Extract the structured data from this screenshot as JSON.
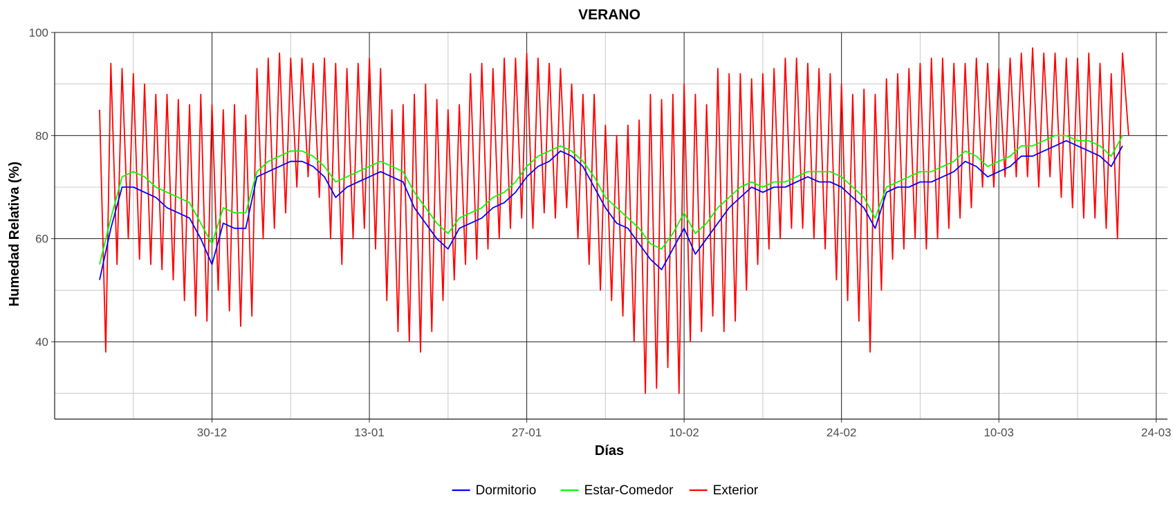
{
  "chart_data": {
    "type": "line",
    "title": "VERANO",
    "xlabel": "Días",
    "ylabel": "Humedad Relativa (%)",
    "x_ticks": [
      "30-12",
      "13-01",
      "27-01",
      "10-02",
      "24-02",
      "10-03",
      "24-03"
    ],
    "xlim": [
      "2020-12-16",
      "2021-03-25"
    ],
    "ylim": [
      25,
      100
    ],
    "y_ticks": [
      40,
      60,
      80,
      100
    ],
    "grid": true,
    "legend_position": "bottom",
    "colors": {
      "Dormitorio": "#0000ff",
      "Estar-Comedor": "#00ff00",
      "Exterior": "#ff0000"
    },
    "series": [
      {
        "name": "Dormitorio",
        "x": [
          "2020-12-20",
          "2020-12-21",
          "2020-12-22",
          "2020-12-23",
          "2020-12-24",
          "2020-12-25",
          "2020-12-26",
          "2020-12-27",
          "2020-12-28",
          "2020-12-29",
          "2020-12-30",
          "2020-12-31",
          "2021-01-01",
          "2021-01-02",
          "2021-01-03",
          "2021-01-04",
          "2021-01-05",
          "2021-01-06",
          "2021-01-07",
          "2021-01-08",
          "2021-01-09",
          "2021-01-10",
          "2021-01-11",
          "2021-01-12",
          "2021-01-13",
          "2021-01-14",
          "2021-01-15",
          "2021-01-16",
          "2021-01-17",
          "2021-01-18",
          "2021-01-19",
          "2021-01-20",
          "2021-01-21",
          "2021-01-22",
          "2021-01-23",
          "2021-01-24",
          "2021-01-25",
          "2021-01-26",
          "2021-01-27",
          "2021-01-28",
          "2021-01-29",
          "2021-01-30",
          "2021-01-31",
          "2021-02-01",
          "2021-02-02",
          "2021-02-03",
          "2021-02-04",
          "2021-02-05",
          "2021-02-06",
          "2021-02-07",
          "2021-02-08",
          "2021-02-09",
          "2021-02-10",
          "2021-02-11",
          "2021-02-12",
          "2021-02-13",
          "2021-02-14",
          "2021-02-15",
          "2021-02-16",
          "2021-02-17",
          "2021-02-18",
          "2021-02-19",
          "2021-02-20",
          "2021-02-21",
          "2021-02-22",
          "2021-02-23",
          "2021-02-24",
          "2021-02-25",
          "2021-02-26",
          "2021-02-27",
          "2021-02-28",
          "2021-03-01",
          "2021-03-02",
          "2021-03-03",
          "2021-03-04",
          "2021-03-05",
          "2021-03-06",
          "2021-03-07",
          "2021-03-08",
          "2021-03-09",
          "2021-03-10",
          "2021-03-11",
          "2021-03-12",
          "2021-03-13",
          "2021-03-14",
          "2021-03-15",
          "2021-03-16",
          "2021-03-17",
          "2021-03-18",
          "2021-03-19",
          "2021-03-20",
          "2021-03-21"
        ],
        "y": [
          52,
          62,
          70,
          70,
          69,
          68,
          66,
          65,
          64,
          60,
          55,
          63,
          62,
          62,
          72,
          73,
          74,
          75,
          75,
          74,
          72,
          68,
          70,
          71,
          72,
          73,
          72,
          71,
          66,
          63,
          60,
          58,
          62,
          63,
          64,
          66,
          67,
          69,
          72,
          74,
          75,
          77,
          76,
          74,
          70,
          66,
          63,
          62,
          59,
          56,
          54,
          58,
          62,
          57,
          60,
          63,
          66,
          68,
          70,
          69,
          70,
          70,
          71,
          72,
          71,
          71,
          70,
          68,
          66,
          62,
          69,
          70,
          70,
          71,
          71,
          72,
          73,
          75,
          74,
          72,
          73,
          74,
          76,
          76,
          77,
          78,
          79,
          78,
          77,
          76,
          74,
          78
        ]
      },
      {
        "name": "Estar-Comedor",
        "x": [
          "2020-12-20",
          "2020-12-21",
          "2020-12-22",
          "2020-12-23",
          "2020-12-24",
          "2020-12-25",
          "2020-12-26",
          "2020-12-27",
          "2020-12-28",
          "2020-12-29",
          "2020-12-30",
          "2020-12-31",
          "2021-01-01",
          "2021-01-02",
          "2021-01-03",
          "2021-01-04",
          "2021-01-05",
          "2021-01-06",
          "2021-01-07",
          "2021-01-08",
          "2021-01-09",
          "2021-01-10",
          "2021-01-11",
          "2021-01-12",
          "2021-01-13",
          "2021-01-14",
          "2021-01-15",
          "2021-01-16",
          "2021-01-17",
          "2021-01-18",
          "2021-01-19",
          "2021-01-20",
          "2021-01-21",
          "2021-01-22",
          "2021-01-23",
          "2021-01-24",
          "2021-01-25",
          "2021-01-26",
          "2021-01-27",
          "2021-01-28",
          "2021-01-29",
          "2021-01-30",
          "2021-01-31",
          "2021-02-01",
          "2021-02-02",
          "2021-02-03",
          "2021-02-04",
          "2021-02-05",
          "2021-02-06",
          "2021-02-07",
          "2021-02-08",
          "2021-02-09",
          "2021-02-10",
          "2021-02-11",
          "2021-02-12",
          "2021-02-13",
          "2021-02-14",
          "2021-02-15",
          "2021-02-16",
          "2021-02-17",
          "2021-02-18",
          "2021-02-19",
          "2021-02-20",
          "2021-02-21",
          "2021-02-22",
          "2021-02-23",
          "2021-02-24",
          "2021-02-25",
          "2021-02-26",
          "2021-02-27",
          "2021-02-28",
          "2021-03-01",
          "2021-03-02",
          "2021-03-03",
          "2021-03-04",
          "2021-03-05",
          "2021-03-06",
          "2021-03-07",
          "2021-03-08",
          "2021-03-09",
          "2021-03-10",
          "2021-03-11",
          "2021-03-12",
          "2021-03-13",
          "2021-03-14",
          "2021-03-15",
          "2021-03-16",
          "2021-03-17",
          "2021-03-18",
          "2021-03-19",
          "2021-03-20",
          "2021-03-21"
        ],
        "y": [
          55,
          64,
          72,
          73,
          72,
          70,
          69,
          68,
          67,
          63,
          59,
          66,
          65,
          65,
          73,
          75,
          76,
          77,
          77,
          76,
          74,
          71,
          72,
          73,
          74,
          75,
          74,
          73,
          69,
          66,
          63,
          61,
          64,
          65,
          66,
          68,
          69,
          71,
          74,
          76,
          77,
          78,
          77,
          75,
          72,
          68,
          66,
          64,
          62,
          59,
          58,
          61,
          65,
          61,
          63,
          66,
          68,
          70,
          71,
          70,
          71,
          71,
          72,
          73,
          73,
          73,
          72,
          70,
          68,
          64,
          70,
          71,
          72,
          73,
          73,
          74,
          75,
          77,
          76,
          74,
          75,
          76,
          78,
          78,
          79,
          80,
          80,
          79,
          79,
          78,
          76,
          80
        ]
      },
      {
        "name": "Exterior",
        "x": [
          "2020-12-20",
          "2020-12-21",
          "2020-12-22",
          "2020-12-23",
          "2020-12-24",
          "2020-12-25",
          "2020-12-26",
          "2020-12-27",
          "2020-12-28",
          "2020-12-29",
          "2020-12-30",
          "2020-12-31",
          "2021-01-01",
          "2021-01-02",
          "2021-01-03",
          "2021-01-04",
          "2021-01-05",
          "2021-01-06",
          "2021-01-07",
          "2021-01-08",
          "2021-01-09",
          "2021-01-10",
          "2021-01-11",
          "2021-01-12",
          "2021-01-13",
          "2021-01-14",
          "2021-01-15",
          "2021-01-16",
          "2021-01-17",
          "2021-01-18",
          "2021-01-19",
          "2021-01-20",
          "2021-01-21",
          "2021-01-22",
          "2021-01-23",
          "2021-01-24",
          "2021-01-25",
          "2021-01-26",
          "2021-01-27",
          "2021-01-28",
          "2021-01-29",
          "2021-01-30",
          "2021-01-31",
          "2021-02-01",
          "2021-02-02",
          "2021-02-03",
          "2021-02-04",
          "2021-02-05",
          "2021-02-06",
          "2021-02-07",
          "2021-02-08",
          "2021-02-09",
          "2021-02-10",
          "2021-02-11",
          "2021-02-12",
          "2021-02-13",
          "2021-02-14",
          "2021-02-15",
          "2021-02-16",
          "2021-02-17",
          "2021-02-18",
          "2021-02-19",
          "2021-02-20",
          "2021-02-21",
          "2021-02-22",
          "2021-02-23",
          "2021-02-24",
          "2021-02-25",
          "2021-02-26",
          "2021-02-27",
          "2021-02-28",
          "2021-03-01",
          "2021-03-02",
          "2021-03-03",
          "2021-03-04",
          "2021-03-05",
          "2021-03-06",
          "2021-03-07",
          "2021-03-08",
          "2021-03-09",
          "2021-03-10",
          "2021-03-11",
          "2021-03-12",
          "2021-03-13",
          "2021-03-14",
          "2021-03-15",
          "2021-03-16",
          "2021-03-17",
          "2021-03-18",
          "2021-03-19",
          "2021-03-20",
          "2021-03-21"
        ],
        "y_max": [
          85,
          94,
          93,
          92,
          90,
          88,
          88,
          87,
          86,
          88,
          86,
          85,
          86,
          84,
          93,
          95,
          96,
          95,
          95,
          94,
          95,
          94,
          93,
          94,
          95,
          93,
          85,
          86,
          88,
          90,
          87,
          85,
          86,
          92,
          94,
          93,
          95,
          95,
          96,
          95,
          94,
          93,
          90,
          88,
          88,
          82,
          80,
          82,
          83,
          88,
          87,
          88,
          90,
          88,
          86,
          93,
          92,
          92,
          91,
          92,
          93,
          95,
          95,
          94,
          93,
          92,
          90,
          88,
          89,
          88,
          91,
          92,
          93,
          94,
          95,
          95,
          94,
          94,
          95,
          94,
          93,
          95,
          96,
          97,
          96,
          96,
          95,
          95,
          96,
          94,
          92,
          96
        ],
        "y_min": [
          38,
          55,
          60,
          56,
          55,
          54,
          52,
          48,
          45,
          44,
          50,
          46,
          43,
          45,
          60,
          62,
          65,
          70,
          72,
          68,
          60,
          55,
          60,
          62,
          58,
          48,
          42,
          40,
          38,
          42,
          48,
          52,
          55,
          56,
          58,
          60,
          62,
          64,
          62,
          65,
          64,
          66,
          60,
          55,
          50,
          48,
          45,
          40,
          30,
          31,
          35,
          30,
          40,
          42,
          45,
          42,
          44,
          50,
          55,
          58,
          60,
          62,
          62,
          60,
          58,
          52,
          48,
          44,
          38,
          50,
          56,
          58,
          60,
          58,
          60,
          62,
          64,
          66,
          70,
          70,
          72,
          72,
          72,
          70,
          72,
          68,
          66,
          64,
          64,
          62,
          60,
          80
        ]
      }
    ]
  }
}
